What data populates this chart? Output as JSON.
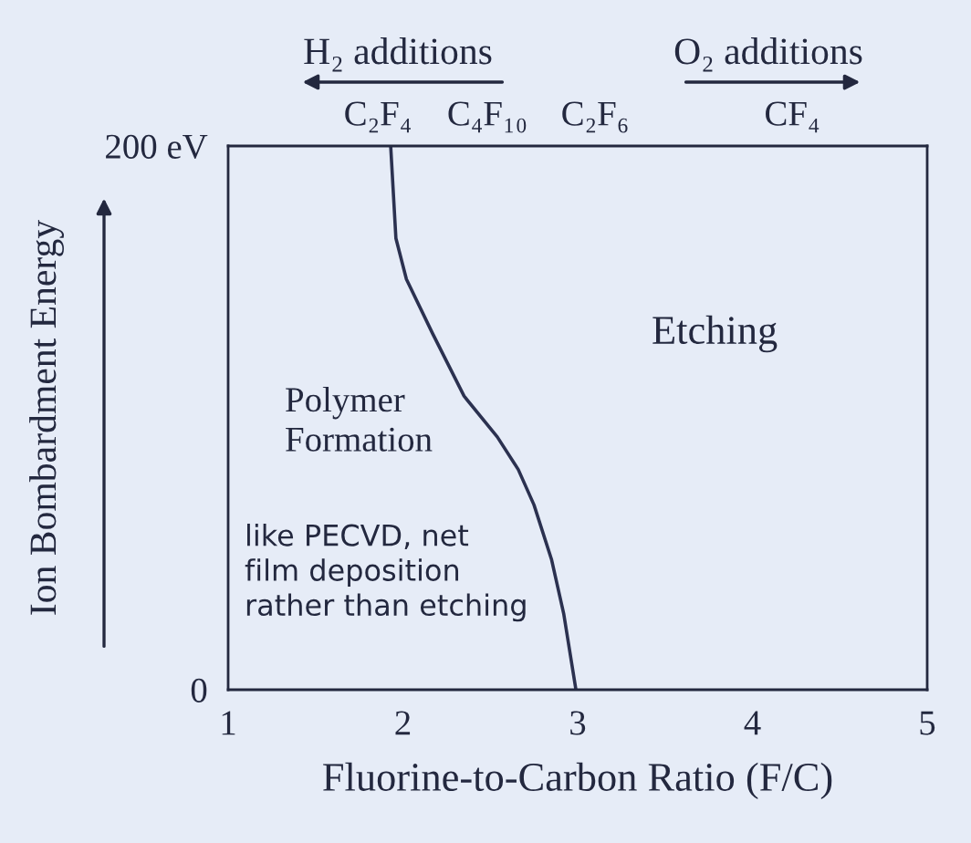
{
  "chart_data": {
    "type": "line",
    "xlabel": "Fluorine-to-Carbon Ratio (F/C)",
    "ylabel": "Ion Bombardment Energy",
    "x": [
      1.93,
      1.96,
      2.02,
      2.17,
      2.35,
      2.54,
      2.66,
      2.75,
      2.85,
      2.92,
      2.99
    ],
    "values": [
      200,
      166,
      151,
      131,
      108,
      93,
      81,
      68,
      48,
      28,
      0
    ],
    "color": "#2b3150",
    "line_style": "solid",
    "xlim": [
      1,
      5
    ],
    "xticks": [
      1,
      2,
      3,
      4,
      5
    ],
    "ylim": [
      0,
      200
    ],
    "yticks": [
      0,
      {
        "value": 200,
        "label": "200 eV"
      }
    ],
    "annotations": [
      "H₂ additions",
      "O₂ additions",
      "C₂F₄",
      "C₄F₁₀",
      "C₂F₆",
      "CF₄",
      "Polymer\nFormation",
      "like PECVD, net\nfilm deposition\nrather than etching",
      "Etching"
    ]
  }
}
